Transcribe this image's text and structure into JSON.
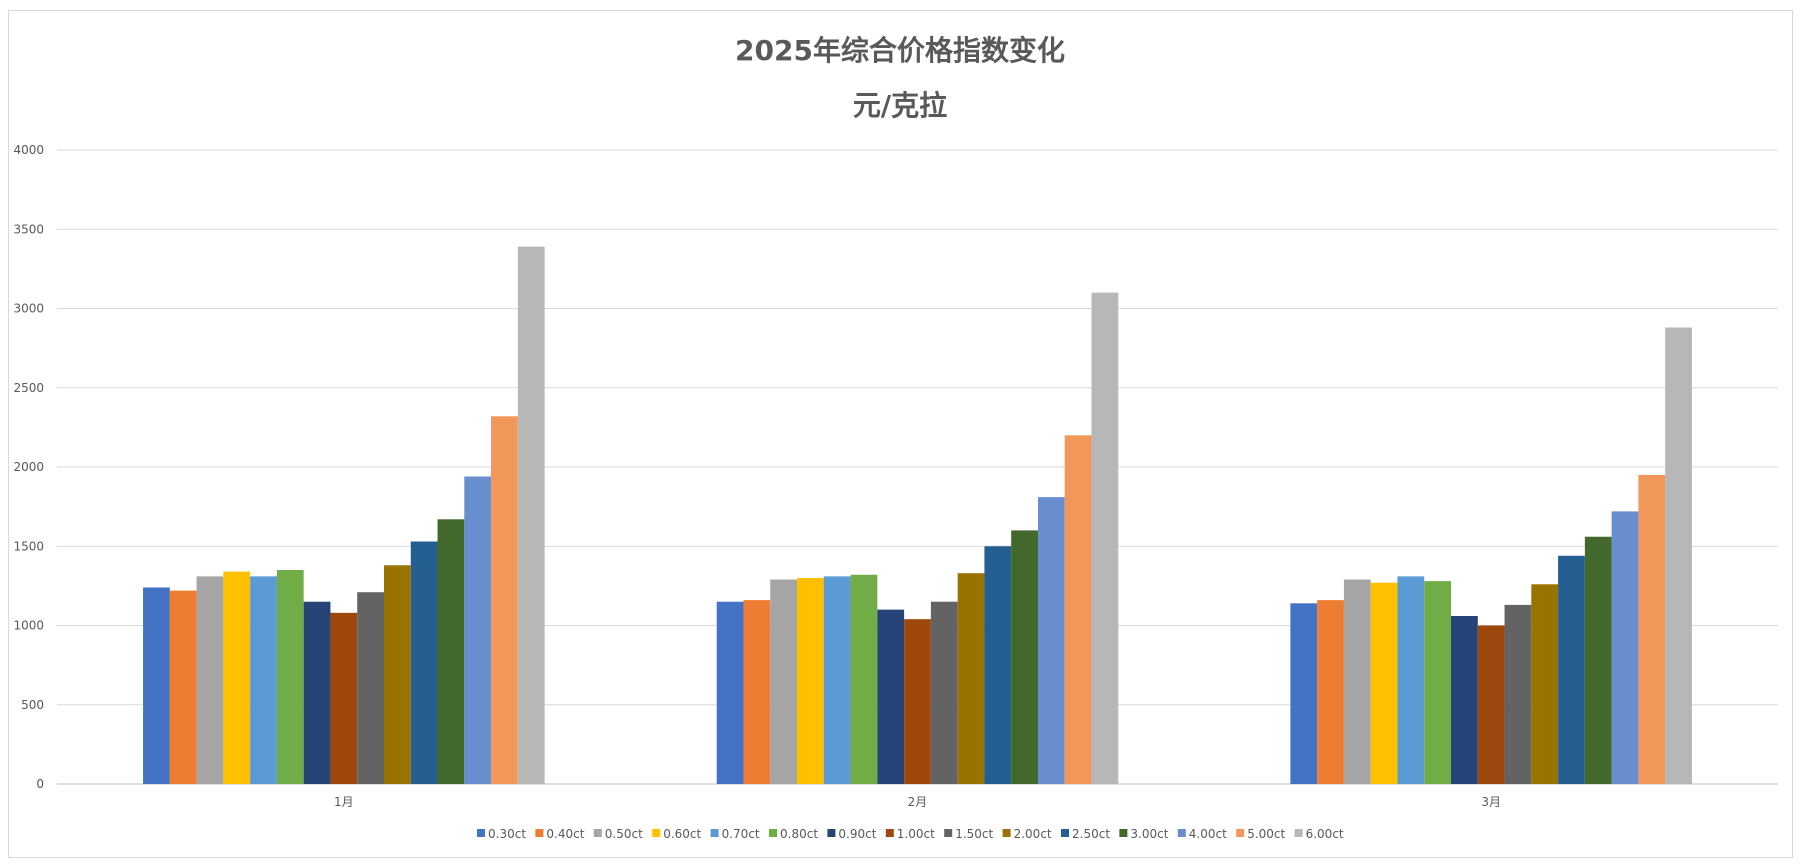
{
  "chart_data": {
    "type": "bar",
    "title": "2025年综合价格指数变化",
    "subtitle": "元/克拉",
    "xlabel": "",
    "ylabel": "",
    "ylim": [
      0,
      4000
    ],
    "yticks": [
      0,
      500,
      1000,
      1500,
      2000,
      2500,
      3000,
      3500,
      4000
    ],
    "grid": true,
    "legend_position": "bottom",
    "categories": [
      "1月",
      "2月",
      "3月"
    ],
    "series": [
      {
        "name": "0.30ct",
        "color": "#4472C4",
        "values": [
          1240,
          1150,
          1140
        ]
      },
      {
        "name": "0.40ct",
        "color": "#ED7D31",
        "values": [
          1220,
          1160,
          1160
        ]
      },
      {
        "name": "0.50ct",
        "color": "#A5A5A5",
        "values": [
          1310,
          1290,
          1290
        ]
      },
      {
        "name": "0.60ct",
        "color": "#FFC000",
        "values": [
          1340,
          1300,
          1270
        ]
      },
      {
        "name": "0.70ct",
        "color": "#5B9BD5",
        "values": [
          1310,
          1310,
          1310
        ]
      },
      {
        "name": "0.80ct",
        "color": "#70AD47",
        "values": [
          1350,
          1320,
          1280
        ]
      },
      {
        "name": "0.90ct",
        "color": "#264478",
        "values": [
          1150,
          1100,
          1060
        ]
      },
      {
        "name": "1.00ct",
        "color": "#9E480E",
        "values": [
          1080,
          1040,
          1000
        ]
      },
      {
        "name": "1.50ct",
        "color": "#636363",
        "values": [
          1210,
          1150,
          1130
        ]
      },
      {
        "name": "2.00ct",
        "color": "#997300",
        "values": [
          1380,
          1330,
          1260
        ]
      },
      {
        "name": "2.50ct",
        "color": "#255E91",
        "values": [
          1530,
          1500,
          1440
        ]
      },
      {
        "name": "3.00ct",
        "color": "#43682B",
        "values": [
          1670,
          1600,
          1560
        ]
      },
      {
        "name": "4.00ct",
        "color": "#698ED0",
        "values": [
          1940,
          1810,
          1720
        ]
      },
      {
        "name": "5.00ct",
        "color": "#F1975A",
        "values": [
          2320,
          2200,
          1950
        ]
      },
      {
        "name": "6.00ct",
        "color": "#B7B7B7",
        "values": [
          3390,
          3100,
          2880
        ]
      }
    ]
  }
}
